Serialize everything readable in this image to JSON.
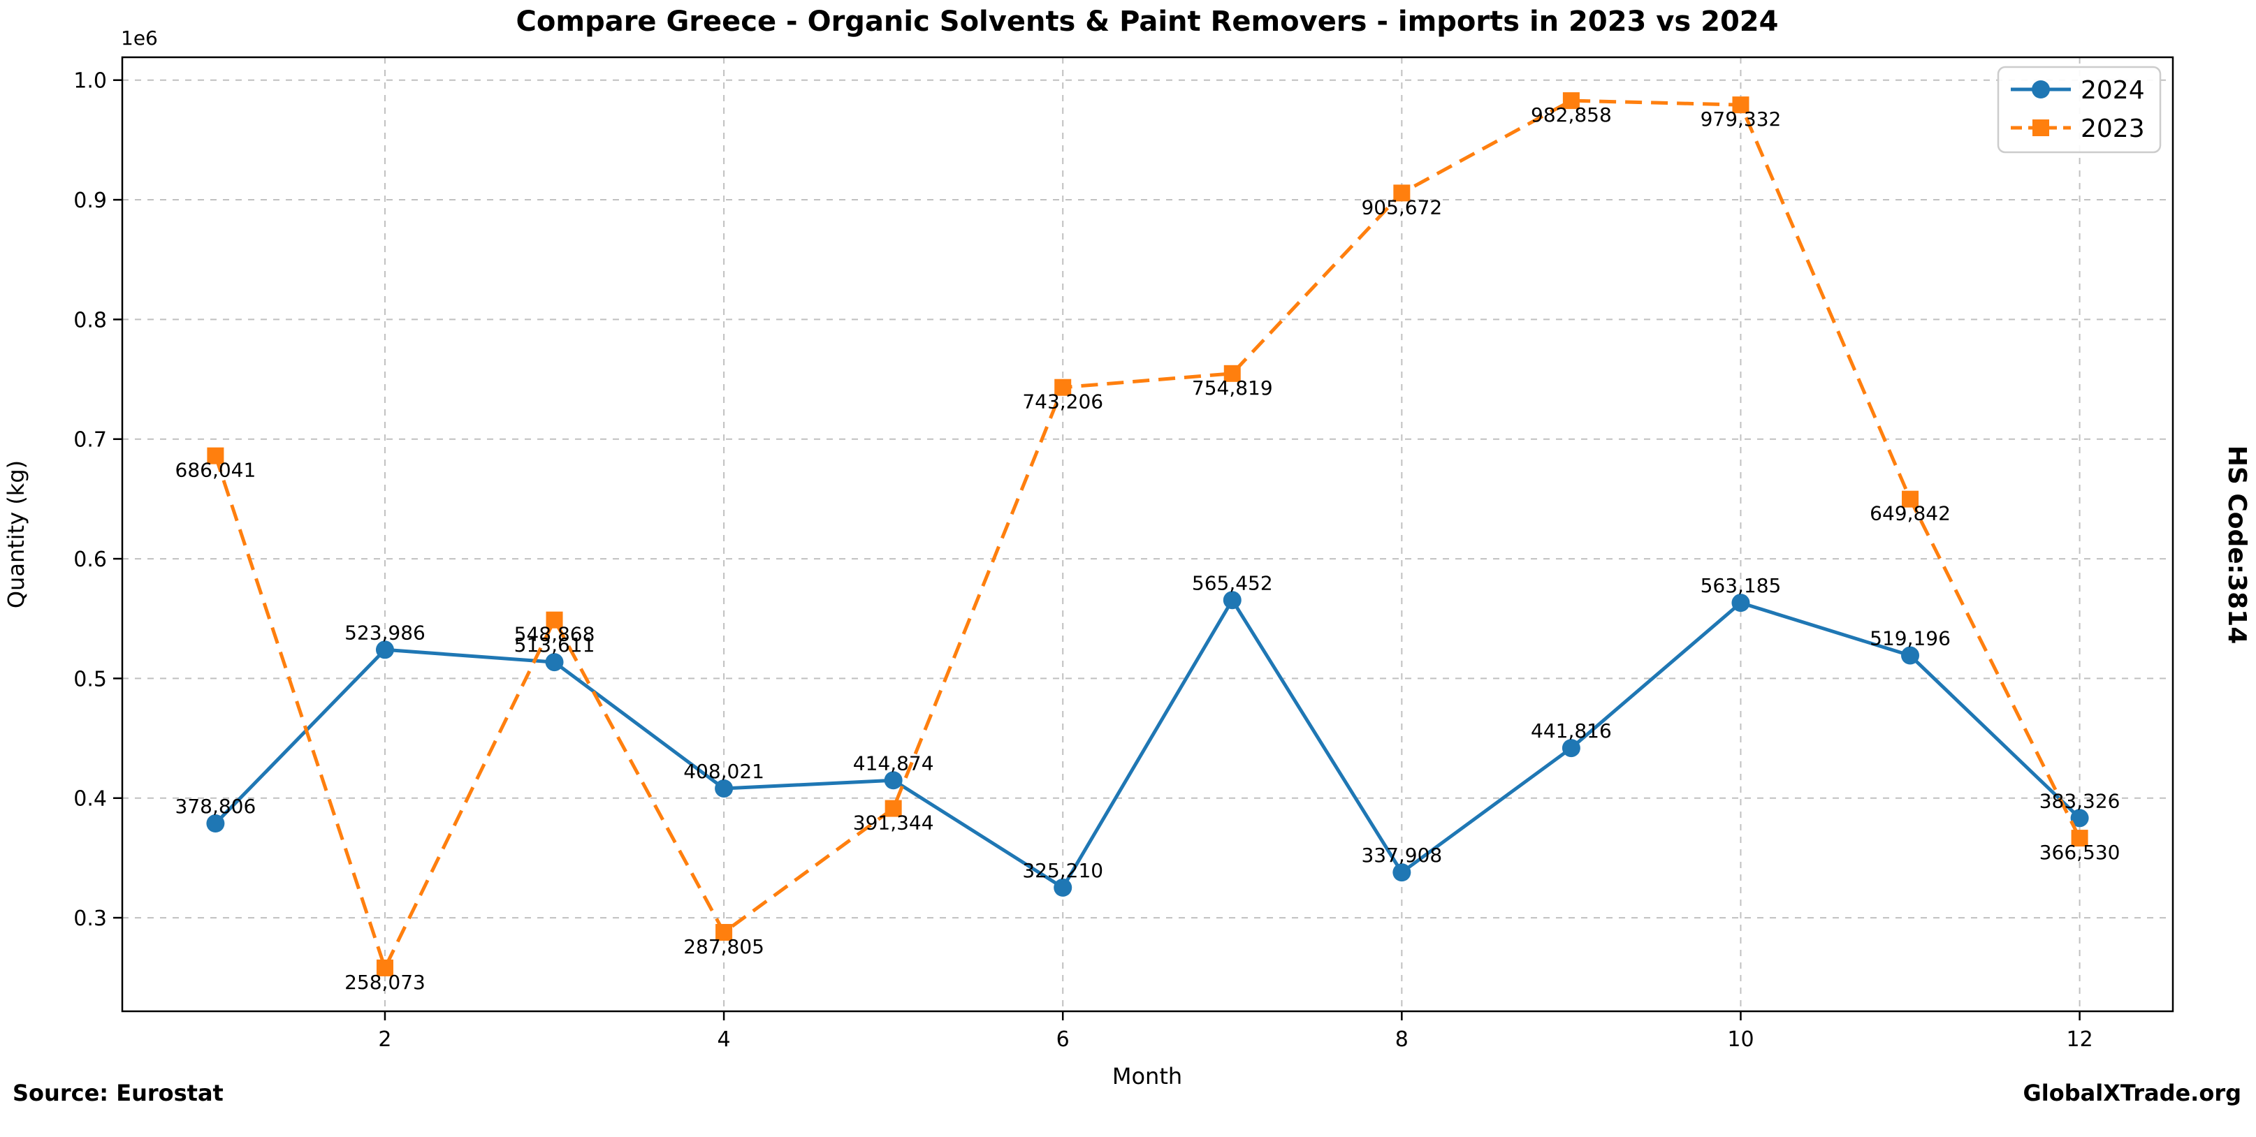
{
  "page": {
    "source": "Source: Eurostat",
    "watermark": "GlobalXTrade.org",
    "right_side_label": "HS Code:3814"
  },
  "chart_data": {
    "type": "line",
    "title": "Compare Greece - Organic Solvents & Paint Removers - imports in 2023 vs 2024",
    "xlabel": "Month",
    "ylabel": "Quantity (kg)",
    "y_offset_label": "1e6",
    "grid": true,
    "legend_position": "upper right",
    "xlim": [
      0.45,
      12.55
    ],
    "ylim": [
      221834,
      1019097
    ],
    "x": [
      1,
      2,
      3,
      4,
      5,
      6,
      7,
      8,
      9,
      10,
      11,
      12
    ],
    "x_ticks": [
      {
        "value": 2,
        "label": "2"
      },
      {
        "value": 4,
        "label": "4"
      },
      {
        "value": 6,
        "label": "6"
      },
      {
        "value": 8,
        "label": "8"
      },
      {
        "value": 10,
        "label": "10"
      },
      {
        "value": 12,
        "label": "12"
      }
    ],
    "y_ticks": [
      {
        "value": 300000,
        "label": "0.3"
      },
      {
        "value": 400000,
        "label": "0.4"
      },
      {
        "value": 500000,
        "label": "0.5"
      },
      {
        "value": 600000,
        "label": "0.6"
      },
      {
        "value": 700000,
        "label": "0.7"
      },
      {
        "value": 800000,
        "label": "0.8"
      },
      {
        "value": 900000,
        "label": "0.9"
      },
      {
        "value": 1000000,
        "label": "1.0"
      }
    ],
    "series": [
      {
        "name": "2024",
        "color": "#1f77b4",
        "line_style": "solid",
        "marker": "circle",
        "label_placement": "above",
        "values": [
          378806,
          523986,
          513611,
          408021,
          414874,
          325210,
          565452,
          337908,
          441816,
          563185,
          519196,
          383326
        ],
        "labels": [
          "378,806",
          "523,986",
          "513,611",
          "408,021",
          "414,874",
          "325,210",
          "565,452",
          "337,908",
          "441,816",
          "563,185",
          "519,196",
          "383,326"
        ]
      },
      {
        "name": "2023",
        "color": "#ff7f0e",
        "line_style": "dashed",
        "marker": "square",
        "label_placement": "below",
        "values": [
          686041,
          258073,
          548868,
          287805,
          391344,
          743206,
          754819,
          905672,
          982858,
          979332,
          649842,
          366530
        ],
        "labels": [
          "686,041",
          "258,073",
          "548,868",
          "287,805",
          "391,344",
          "743,206",
          "754,819",
          "905,672",
          "982,858",
          "979,332",
          "649,842",
          "366,530"
        ]
      }
    ],
    "colors": {
      "grid": "#c0c0c0",
      "spine": "#000000",
      "legend_border": "#cccccc"
    }
  }
}
